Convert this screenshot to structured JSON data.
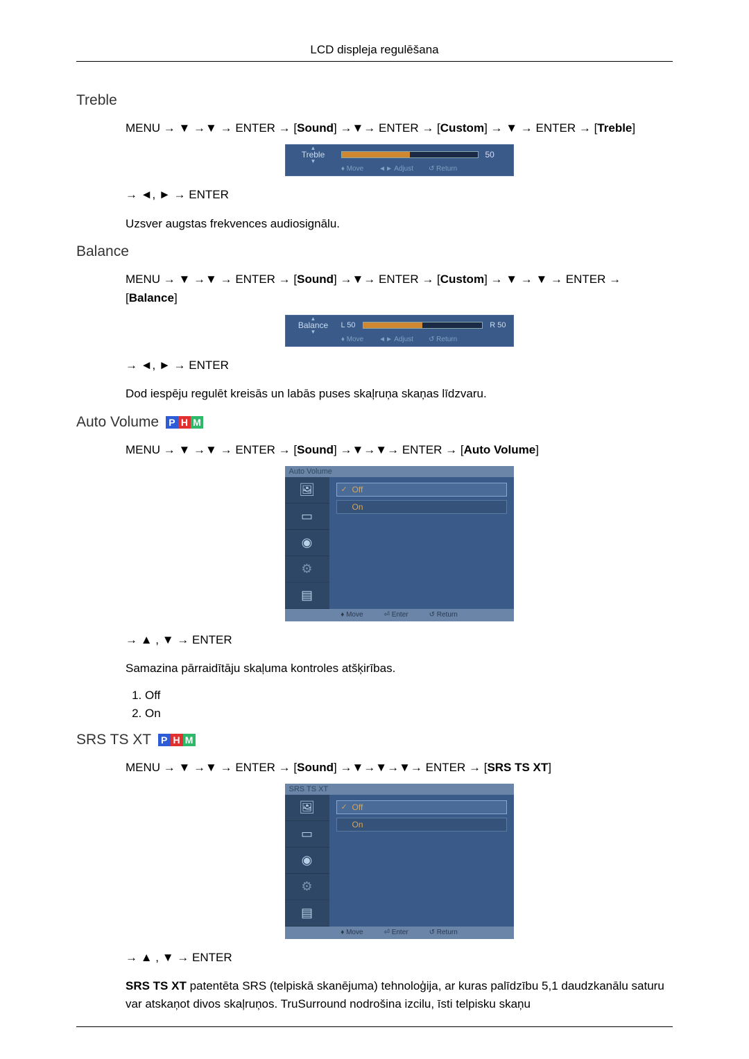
{
  "header": "LCD displeja regulēšana",
  "phm": {
    "letters": [
      "P",
      "H",
      "M"
    ],
    "colors": [
      "#2e5bd6",
      "#e03030",
      "#2eb86a"
    ]
  },
  "arrows": {
    "down": "▼",
    "up": "▲",
    "left": "◄",
    "right": "►",
    "to": "→"
  },
  "osd_hints_slider": {
    "move": "♦ Move",
    "adjust": "◄► Adjust",
    "ret": "↺ Return"
  },
  "osd_hints_menu": {
    "move": "♦ Move",
    "enter": "⏎ Enter",
    "ret": "↺ Return"
  },
  "sidebar_icons": [
    "🖼",
    "▭",
    "◉",
    "⚙",
    "▤"
  ],
  "treble": {
    "title": "Treble",
    "nav": "MENU → ▼ →▼ → ENTER → [Sound] →▼→ ENTER → [Custom] → ▼ → ENTER → [Treble]",
    "slider_label": "Treble",
    "slider_value": "50",
    "slider_fill_percent": 50,
    "post_nav": "→ ◄, ► → ENTER",
    "desc": "Uzsver augstas frekvences audiosignālu."
  },
  "balance": {
    "title": "Balance",
    "nav": "MENU → ▼ →▼ → ENTER → [Sound] →▼→ ENTER → [Custom] → ▼ → ▼ → ENTER → [Balance]",
    "slider_label": "Balance",
    "left_value": "L 50",
    "right_value": "R 50",
    "slider_fill_percent": 50,
    "post_nav": "→ ◄, ► → ENTER",
    "desc": "Dod iespēju regulēt kreisās un labās puses skaļruņa skaņas līdzvaru."
  },
  "auto_volume": {
    "title": "Auto Volume",
    "nav": "MENU → ▼ →▼ → ENTER → [Sound] →▼→▼→ ENTER → [Auto Volume]",
    "menu_title": "Auto Volume",
    "options": [
      "Off",
      "On"
    ],
    "selected_index": 0,
    "post_nav": "→ ▲ , ▼ → ENTER",
    "desc": "Samazina pārraidītāju skaļuma kontroles atšķirības.",
    "list": [
      "Off",
      "On"
    ]
  },
  "srs": {
    "title": "SRS TS XT",
    "nav": "MENU → ▼ →▼ → ENTER → [Sound] →▼→▼→▼→ ENTER → [SRS TS XT]",
    "menu_title": "SRS TS XT",
    "options": [
      "Off",
      "On"
    ],
    "selected_index": 0,
    "post_nav": "→ ▲ , ▼ → ENTER",
    "desc": "SRS TS XT patentēta SRS (telpiskā skanējuma) tehnoloģija, ar kuras palīdzību 5,1 daudz­kanālu saturu var atskaņot divos skaļruņos. TruSurround nodrošina izcilu, īsti telpisku skaņu"
  }
}
